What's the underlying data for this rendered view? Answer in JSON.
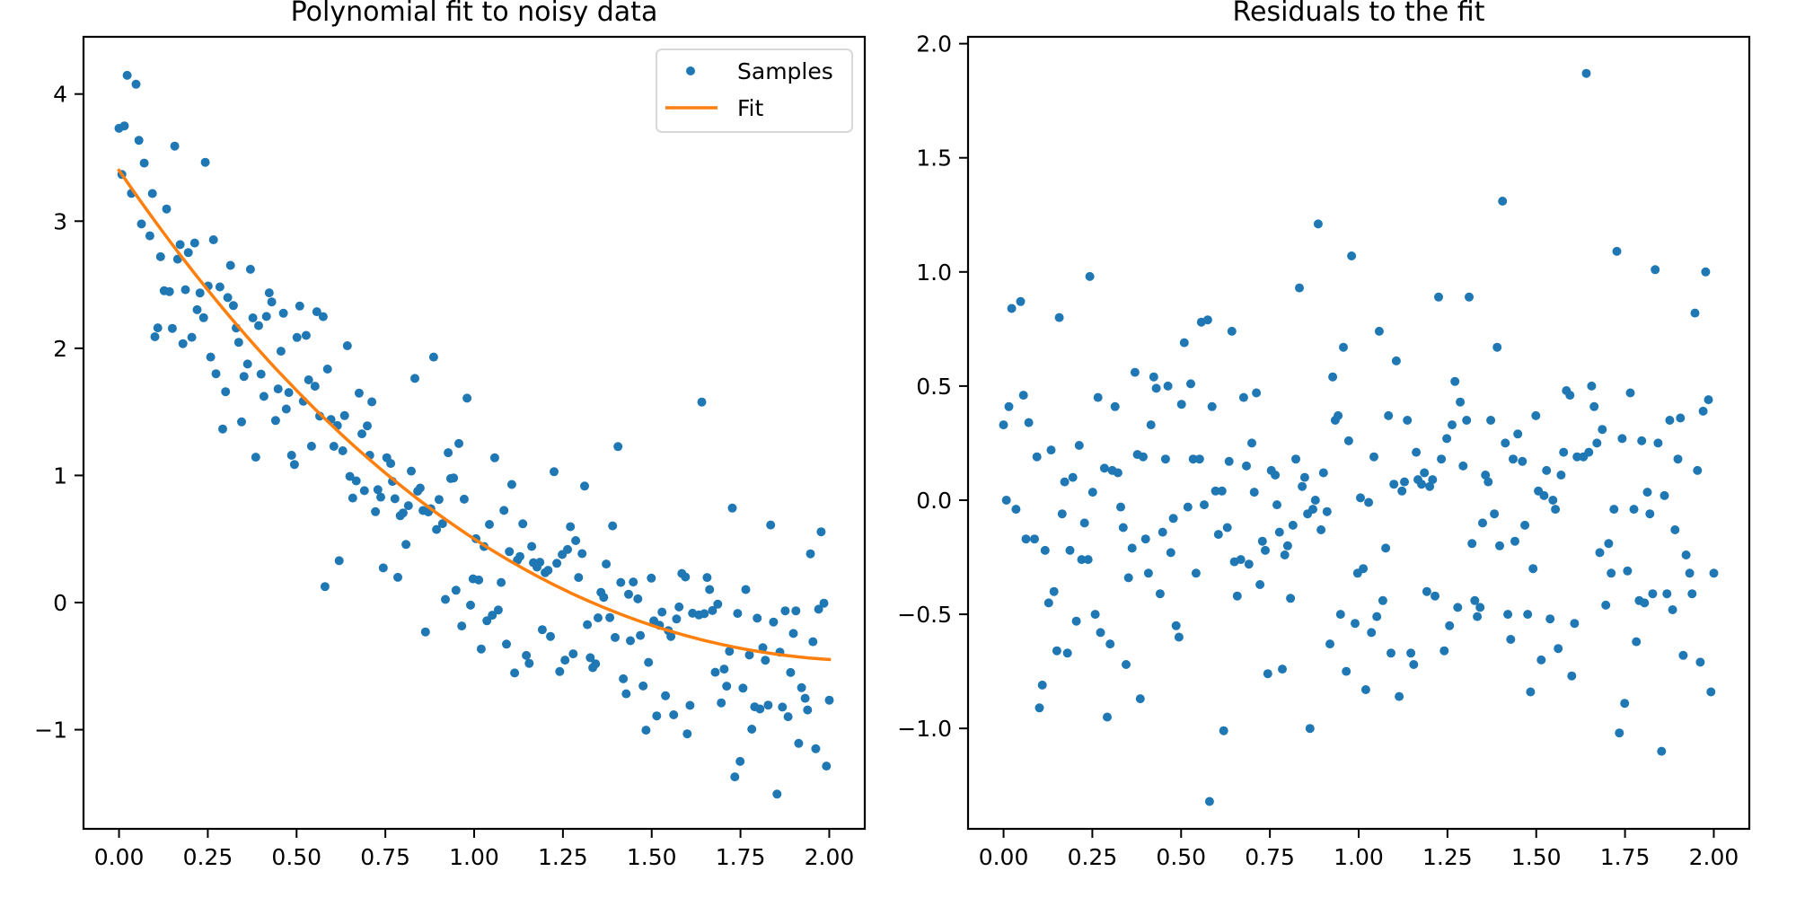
{
  "colors": {
    "samples": "#1f77b4",
    "fit": "#ff7f0e",
    "axes": "#000000",
    "legend_border": "#d9d9d9"
  },
  "chart_data": [
    {
      "type": "scatter",
      "title": "Polynomial fit to noisy data",
      "xlabel": "",
      "ylabel": "",
      "xlim": [
        -0.1,
        2.1
      ],
      "ylim": [
        -1.78,
        4.45
      ],
      "xticks": [
        0,
        0.25,
        0.5,
        0.75,
        1.0,
        1.25,
        1.5,
        1.75,
        2.0
      ],
      "xtick_labels": [
        "0.00",
        "0.25",
        "0.50",
        "0.75",
        "1.00",
        "1.25",
        "1.50",
        "1.75",
        "2.00"
      ],
      "yticks": [
        -1,
        0,
        1,
        2,
        3,
        4
      ],
      "ytick_labels": [
        "−1",
        "0",
        "1",
        "2",
        "3",
        "4"
      ],
      "grid": false,
      "legend": {
        "placement": "top-right",
        "entries": [
          {
            "label": "Samples",
            "kind": "marker"
          },
          {
            "label": "Fit",
            "kind": "line"
          }
        ]
      },
      "fit_coefficients": [
        3.4,
        -4.08,
        1.284,
        -0.103
      ],
      "series": [
        {
          "name": "Samples",
          "kind": "scatter",
          "y_source": "fit + residual"
        },
        {
          "name": "Fit",
          "kind": "line",
          "x_range": [
            0,
            2
          ]
        }
      ]
    },
    {
      "type": "scatter",
      "title": "Residuals to the fit",
      "xlabel": "",
      "ylabel": "",
      "xlim": [
        -0.1,
        2.1
      ],
      "ylim": [
        -1.44,
        2.03
      ],
      "xticks": [
        0,
        0.25,
        0.5,
        0.75,
        1.0,
        1.25,
        1.5,
        1.75,
        2.0
      ],
      "xtick_labels": [
        "0.00",
        "0.25",
        "0.50",
        "0.75",
        "1.00",
        "1.25",
        "1.50",
        "1.75",
        "2.00"
      ],
      "yticks": [
        -1.0,
        -0.5,
        0.0,
        0.5,
        1.0,
        1.5,
        2.0
      ],
      "ytick_labels": [
        "−1.0",
        "−0.5",
        "0.0",
        "0.5",
        "1.0",
        "1.5",
        "2.0"
      ],
      "grid": false,
      "x": [
        0.0,
        0.008,
        0.015,
        0.023,
        0.035,
        0.048,
        0.056,
        0.063,
        0.071,
        0.087,
        0.094,
        0.101,
        0.109,
        0.117,
        0.127,
        0.134,
        0.142,
        0.15,
        0.157,
        0.165,
        0.172,
        0.18,
        0.187,
        0.195,
        0.205,
        0.213,
        0.22,
        0.228,
        0.238,
        0.243,
        0.251,
        0.258,
        0.266,
        0.273,
        0.284,
        0.292,
        0.3,
        0.306,
        0.314,
        0.322,
        0.33,
        0.337,
        0.345,
        0.352,
        0.362,
        0.37,
        0.377,
        0.385,
        0.393,
        0.4,
        0.408,
        0.415,
        0.423,
        0.43,
        0.441,
        0.448,
        0.456,
        0.463,
        0.471,
        0.478,
        0.486,
        0.494,
        0.501,
        0.509,
        0.519,
        0.527,
        0.534,
        0.542,
        0.552,
        0.557,
        0.565,
        0.575,
        0.58,
        0.587,
        0.597,
        0.605,
        0.615,
        0.62,
        0.63,
        0.635,
        0.643,
        0.65,
        0.658,
        0.668,
        0.676,
        0.684,
        0.691,
        0.699,
        0.706,
        0.712,
        0.722,
        0.729,
        0.737,
        0.744,
        0.754,
        0.765,
        0.77,
        0.777,
        0.785,
        0.792,
        0.8,
        0.808,
        0.815,
        0.823,
        0.833,
        0.841,
        0.848,
        0.856,
        0.863,
        0.871,
        0.878,
        0.886,
        0.894,
        0.901,
        0.911,
        0.919,
        0.927,
        0.934,
        0.942,
        0.949,
        0.957,
        0.965,
        0.972,
        0.98,
        0.99,
        0.997,
        1.005,
        1.013,
        1.02,
        1.028,
        1.036,
        1.043,
        1.051,
        1.058,
        1.068,
        1.076,
        1.084,
        1.091,
        1.099,
        1.106,
        1.114,
        1.122,
        1.129,
        1.137,
        1.147,
        1.155,
        1.162,
        1.167,
        1.177,
        1.185,
        1.192,
        1.2,
        1.208,
        1.215,
        1.225,
        1.233,
        1.241,
        1.248,
        1.256,
        1.263,
        1.271,
        1.279,
        1.286,
        1.294,
        1.304,
        1.311,
        1.319,
        1.327,
        1.334,
        1.342,
        1.349,
        1.357,
        1.365,
        1.372,
        1.382,
        1.39,
        1.397,
        1.405,
        1.413,
        1.42,
        1.428,
        1.435,
        1.44,
        1.448,
        1.461,
        1.468,
        1.476,
        1.484,
        1.491,
        1.499,
        1.506,
        1.514,
        1.522,
        1.529,
        1.539,
        1.547,
        1.554,
        1.562,
        1.57,
        1.577,
        1.585,
        1.595,
        1.6,
        1.608,
        1.615,
        1.633,
        1.641,
        1.648,
        1.656,
        1.663,
        1.671,
        1.679,
        1.686,
        1.696,
        1.704,
        1.711,
        1.719,
        1.727,
        1.734,
        1.742,
        1.749,
        1.757,
        1.765,
        1.775,
        1.782,
        1.79,
        1.797,
        1.805,
        1.813,
        1.82,
        1.828,
        1.835,
        1.843,
        1.853,
        1.861,
        1.868,
        1.876,
        1.884,
        1.891,
        1.899,
        1.906,
        1.914,
        1.922,
        1.932,
        1.939,
        1.947,
        1.954,
        1.962,
        1.97,
        1.977,
        1.985,
        1.992,
        2.0
      ],
      "residuals": [
        0.33,
        0.0,
        0.41,
        0.84,
        -0.04,
        0.87,
        0.46,
        -0.17,
        0.34,
        -0.17,
        0.19,
        -0.91,
        -0.81,
        -0.22,
        -0.45,
        0.22,
        -0.4,
        -0.66,
        0.8,
        -0.06,
        0.08,
        -0.67,
        -0.22,
        0.1,
        -0.53,
        0.24,
        -0.26,
        -0.1,
        -0.26,
        0.98,
        0.035,
        -0.5,
        0.45,
        -0.58,
        0.14,
        -0.95,
        -0.63,
        0.13,
        0.41,
        0.12,
        -0.03,
        -0.12,
        -0.72,
        -0.34,
        -0.21,
        0.56,
        0.2,
        -0.87,
        0.19,
        -0.17,
        -0.32,
        0.33,
        0.54,
        0.49,
        -0.41,
        -0.14,
        0.18,
        0.5,
        -0.23,
        -0.08,
        -0.55,
        -0.6,
        0.42,
        0.69,
        -0.03,
        0.51,
        0.18,
        -0.32,
        0.18,
        0.78,
        -0.02,
        0.79,
        -1.32,
        0.41,
        0.04,
        -0.15,
        0.04,
        -1.01,
        -0.12,
        0.17,
        0.74,
        -0.27,
        -0.42,
        -0.26,
        0.45,
        0.15,
        -0.28,
        0.25,
        0.035,
        0.47,
        -0.37,
        -0.18,
        -0.22,
        -0.76,
        0.13,
        0.11,
        -0.02,
        -0.14,
        -0.74,
        -0.24,
        -0.2,
        -0.43,
        -0.11,
        0.18,
        0.93,
        0.06,
        0.1,
        -0.06,
        -1.0,
        -0.04,
        0.0,
        1.21,
        -0.13,
        0.12,
        -0.05,
        -0.63,
        0.54,
        0.35,
        0.37,
        -0.5,
        0.67,
        -0.75,
        0.26,
        1.07,
        -0.54,
        -0.32,
        0.01,
        -0.3,
        -0.83,
        -0.01,
        -0.58,
        0.19,
        -0.51,
        0.74,
        -0.44,
        -0.21,
        0.37,
        -0.67,
        0.07,
        0.61,
        -0.86,
        0.04,
        0.08,
        0.35,
        -0.67,
        -0.72,
        0.21,
        0.09,
        0.07,
        0.12,
        -0.4,
        0.06,
        0.09,
        -0.42,
        0.89,
        0.18,
        -0.66,
        0.27,
        -0.55,
        0.33,
        0.52,
        -0.47,
        0.43,
        0.15,
        0.35,
        0.89,
        -0.19,
        -0.44,
        -0.51,
        -0.47,
        -0.1,
        0.11,
        0.08,
        0.35,
        -0.06,
        0.67,
        -0.2,
        1.31,
        0.25,
        -0.5,
        -0.61,
        0.18,
        -0.18,
        0.29,
        0.17,
        -0.11,
        -0.5,
        -0.84,
        -0.3,
        0.37,
        0.04,
        -0.7,
        0.02,
        0.13,
        -0.52,
        0.0,
        -0.04,
        -0.65,
        0.11,
        0.21,
        0.48,
        0.46,
        -0.77,
        -0.54,
        0.19,
        0.19,
        1.87,
        0.21,
        0.5,
        0.41,
        0.25,
        -0.23,
        0.31,
        -0.46,
        -0.19,
        -0.32,
        -0.04,
        1.09,
        -1.02,
        0.27,
        -0.89,
        -0.31,
        0.47,
        -0.04,
        -0.62,
        -0.44,
        0.26,
        -0.45,
        0.035,
        -0.06,
        -0.41,
        1.01,
        0.25,
        -1.1,
        0.02,
        -0.41,
        0.35,
        -0.48,
        -0.13,
        0.18,
        0.36,
        -0.68,
        -0.24,
        -0.32,
        -0.41,
        0.82,
        0.13,
        -0.71,
        0.39,
        1.0,
        0.44,
        -0.84,
        -0.32
      ]
    }
  ]
}
